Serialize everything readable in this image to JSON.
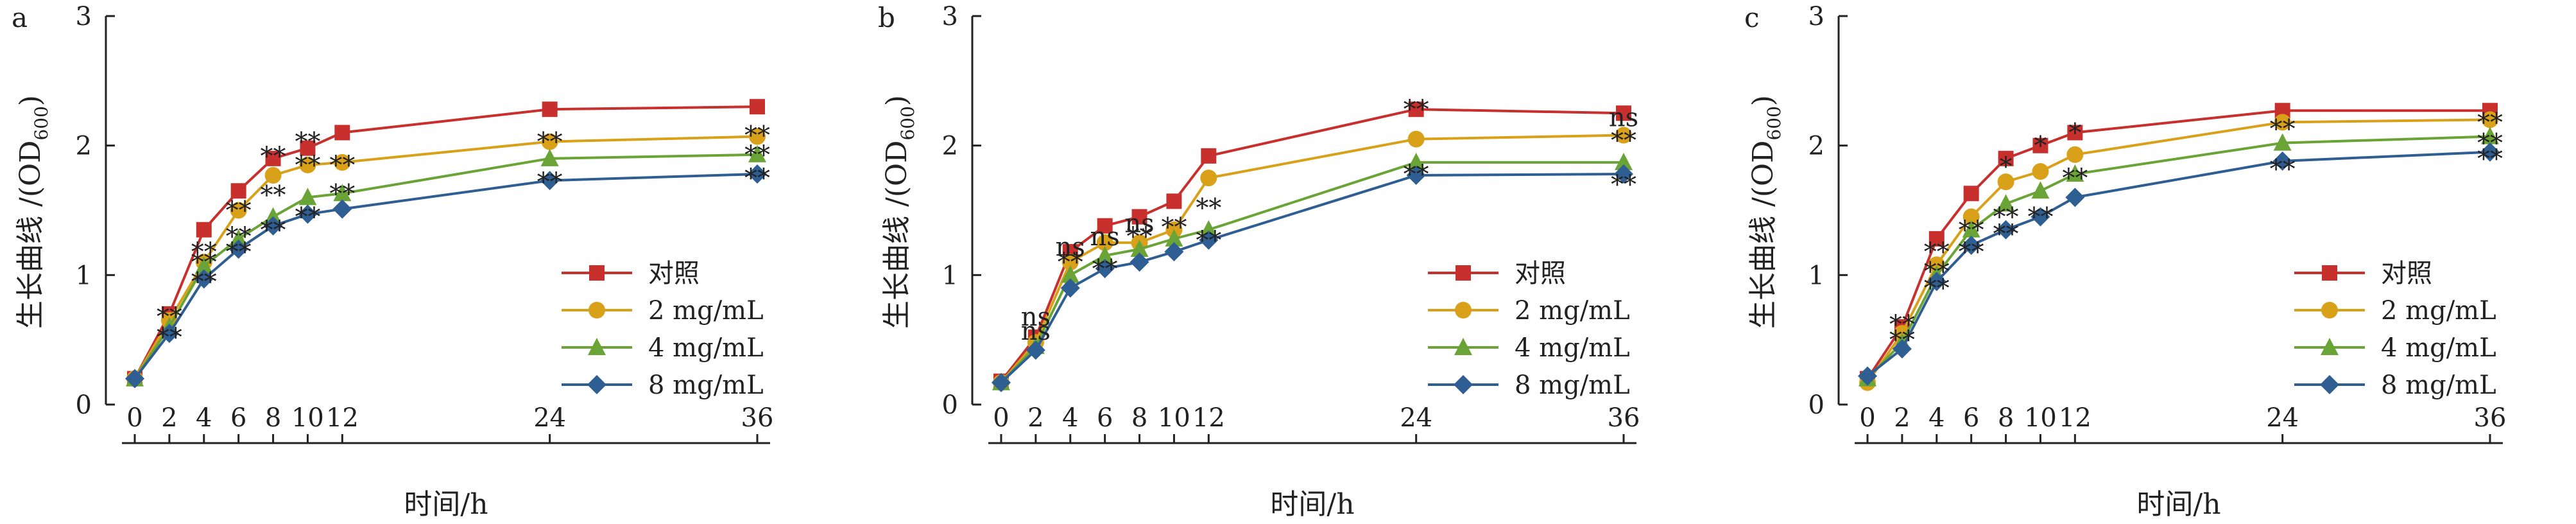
{
  "ylabel_main": "生长曲线 /(OD",
  "ylabel_sub": "600",
  "ylabel_end": ")",
  "xlabel": "时间/h",
  "series_colors": [
    "#c8302e",
    "#d9a11a",
    "#6aa436",
    "#2f5e93"
  ],
  "series_markers": [
    "square",
    "circle",
    "triangle",
    "diamond"
  ],
  "chart_data": [
    {
      "panel": "a",
      "type": "line",
      "x": [
        0,
        2,
        4,
        6,
        8,
        10,
        12,
        24,
        36
      ],
      "xticks": [
        "0",
        "2",
        "4",
        "6",
        "8",
        "10",
        "12",
        "24",
        "36"
      ],
      "ylim": [
        0,
        3
      ],
      "yticks": [
        "0",
        "1",
        "2",
        "3"
      ],
      "series": [
        {
          "name": "对照",
          "values": [
            0.2,
            0.7,
            1.35,
            1.65,
            1.9,
            1.98,
            2.1,
            2.28,
            2.3
          ]
        },
        {
          "name": "2 mg/mL",
          "values": [
            0.2,
            0.65,
            1.1,
            1.5,
            1.77,
            1.85,
            1.87,
            2.03,
            2.07
          ]
        },
        {
          "name": "4 mg/mL",
          "values": [
            0.2,
            0.6,
            1.07,
            1.28,
            1.45,
            1.6,
            1.63,
            1.9,
            1.93
          ]
        },
        {
          "name": "8 mg/mL",
          "values": [
            0.2,
            0.55,
            0.97,
            1.2,
            1.38,
            1.47,
            1.51,
            1.73,
            1.78
          ]
        }
      ],
      "annotations": [
        {
          "x": 2,
          "y": 0.68,
          "text": "**"
        },
        {
          "x": 2,
          "y": 0.52,
          "text": "**"
        },
        {
          "x": 4,
          "y": 1.18,
          "text": "**"
        },
        {
          "x": 4,
          "y": 1.1,
          "text": "**"
        },
        {
          "x": 4,
          "y": 0.95,
          "text": "**"
        },
        {
          "x": 6,
          "y": 1.5,
          "text": "**"
        },
        {
          "x": 6,
          "y": 1.3,
          "text": "**"
        },
        {
          "x": 6,
          "y": 1.18,
          "text": "**"
        },
        {
          "x": 8,
          "y": 1.92,
          "text": "**"
        },
        {
          "x": 8,
          "y": 1.62,
          "text": "**"
        },
        {
          "x": 8,
          "y": 1.35,
          "text": "**"
        },
        {
          "x": 10,
          "y": 2.03,
          "text": "**"
        },
        {
          "x": 10,
          "y": 1.85,
          "text": "**"
        },
        {
          "x": 10,
          "y": 1.45,
          "text": "**"
        },
        {
          "x": 12,
          "y": 1.85,
          "text": "**"
        },
        {
          "x": 12,
          "y": 1.63,
          "text": "**"
        },
        {
          "x": 24,
          "y": 2.03,
          "text": "**"
        },
        {
          "x": 24,
          "y": 1.72,
          "text": "**"
        },
        {
          "x": 36,
          "y": 2.08,
          "text": "**"
        },
        {
          "x": 36,
          "y": 1.93,
          "text": "**"
        },
        {
          "x": 36,
          "y": 1.75,
          "text": "**"
        }
      ],
      "legend_position": "bottom-right"
    },
    {
      "panel": "b",
      "type": "line",
      "x": [
        0,
        2,
        4,
        6,
        8,
        10,
        12,
        24,
        36
      ],
      "xticks": [
        "0",
        "2",
        "4",
        "6",
        "8",
        "10",
        "12",
        "24",
        "36"
      ],
      "ylim": [
        0,
        3
      ],
      "yticks": [
        "0",
        "1",
        "2",
        "3"
      ],
      "series": [
        {
          "name": "对照",
          "values": [
            0.18,
            0.52,
            1.18,
            1.38,
            1.45,
            1.57,
            1.92,
            2.28,
            2.25
          ]
        },
        {
          "name": "2 mg/mL",
          "values": [
            0.17,
            0.48,
            1.1,
            1.25,
            1.25,
            1.35,
            1.75,
            2.05,
            2.08
          ]
        },
        {
          "name": "4 mg/mL",
          "values": [
            0.17,
            0.45,
            1.0,
            1.15,
            1.2,
            1.28,
            1.35,
            1.87,
            1.87
          ]
        },
        {
          "name": "8 mg/mL",
          "values": [
            0.17,
            0.42,
            0.9,
            1.05,
            1.1,
            1.18,
            1.27,
            1.77,
            1.78
          ]
        }
      ],
      "annotations": [
        {
          "x": 2,
          "y": 0.68,
          "text": "ns"
        },
        {
          "x": 2,
          "y": 0.57,
          "text": "ns"
        },
        {
          "x": 4,
          "y": 1.22,
          "text": "ns"
        },
        {
          "x": 4,
          "y": 1.1,
          "text": "**"
        },
        {
          "x": 6,
          "y": 1.3,
          "text": "ns"
        },
        {
          "x": 6,
          "y": 1.05,
          "text": "**"
        },
        {
          "x": 8,
          "y": 1.4,
          "text": "ns"
        },
        {
          "x": 8,
          "y": 1.3,
          "text": "**"
        },
        {
          "x": 10,
          "y": 1.37,
          "text": "**"
        },
        {
          "x": 12,
          "y": 1.52,
          "text": "**"
        },
        {
          "x": 12,
          "y": 1.27,
          "text": "**"
        },
        {
          "x": 24,
          "y": 2.28,
          "text": "**"
        },
        {
          "x": 24,
          "y": 1.78,
          "text": "**"
        },
        {
          "x": 36,
          "y": 2.22,
          "text": "ns"
        },
        {
          "x": 36,
          "y": 2.04,
          "text": "**"
        },
        {
          "x": 36,
          "y": 1.7,
          "text": "**"
        }
      ],
      "legend_position": "bottom-right"
    },
    {
      "panel": "c",
      "type": "line",
      "x": [
        0,
        2,
        4,
        6,
        8,
        10,
        12,
        24,
        36
      ],
      "xticks": [
        "0",
        "2",
        "4",
        "6",
        "8",
        "10",
        "12",
        "24",
        "36"
      ],
      "ylim": [
        0,
        3
      ],
      "yticks": [
        "0",
        "1",
        "2",
        "3"
      ],
      "series": [
        {
          "name": "对照",
          "values": [
            0.2,
            0.6,
            1.28,
            1.63,
            1.9,
            2.0,
            2.1,
            2.27,
            2.27
          ]
        },
        {
          "name": "2 mg/mL",
          "values": [
            0.17,
            0.55,
            1.08,
            1.45,
            1.72,
            1.8,
            1.93,
            2.18,
            2.2
          ]
        },
        {
          "name": "4 mg/mL",
          "values": [
            0.2,
            0.48,
            1.0,
            1.35,
            1.55,
            1.65,
            1.78,
            2.02,
            2.07
          ]
        },
        {
          "name": "8 mg/mL",
          "values": [
            0.22,
            0.43,
            0.95,
            1.23,
            1.35,
            1.45,
            1.6,
            1.88,
            1.95
          ]
        }
      ],
      "annotations": [
        {
          "x": 2,
          "y": 0.62,
          "text": "**"
        },
        {
          "x": 2,
          "y": 0.5,
          "text": "**"
        },
        {
          "x": 4,
          "y": 1.18,
          "text": "**"
        },
        {
          "x": 4,
          "y": 1.03,
          "text": "**"
        },
        {
          "x": 4,
          "y": 0.9,
          "text": "**"
        },
        {
          "x": 6,
          "y": 1.35,
          "text": "**"
        },
        {
          "x": 6,
          "y": 1.18,
          "text": "**"
        },
        {
          "x": 8,
          "y": 1.84,
          "text": "*"
        },
        {
          "x": 8,
          "y": 1.45,
          "text": "**"
        },
        {
          "x": 8,
          "y": 1.32,
          "text": "**"
        },
        {
          "x": 10,
          "y": 2.0,
          "text": "*"
        },
        {
          "x": 10,
          "y": 1.45,
          "text": "**"
        },
        {
          "x": 12,
          "y": 2.1,
          "text": "*"
        },
        {
          "x": 12,
          "y": 1.75,
          "text": "**"
        },
        {
          "x": 24,
          "y": 2.13,
          "text": "**"
        },
        {
          "x": 24,
          "y": 1.82,
          "text": "**"
        },
        {
          "x": 36,
          "y": 2.18,
          "text": "**"
        },
        {
          "x": 36,
          "y": 2.02,
          "text": "**"
        },
        {
          "x": 36,
          "y": 1.9,
          "text": "**"
        }
      ],
      "legend_position": "bottom-right"
    }
  ]
}
